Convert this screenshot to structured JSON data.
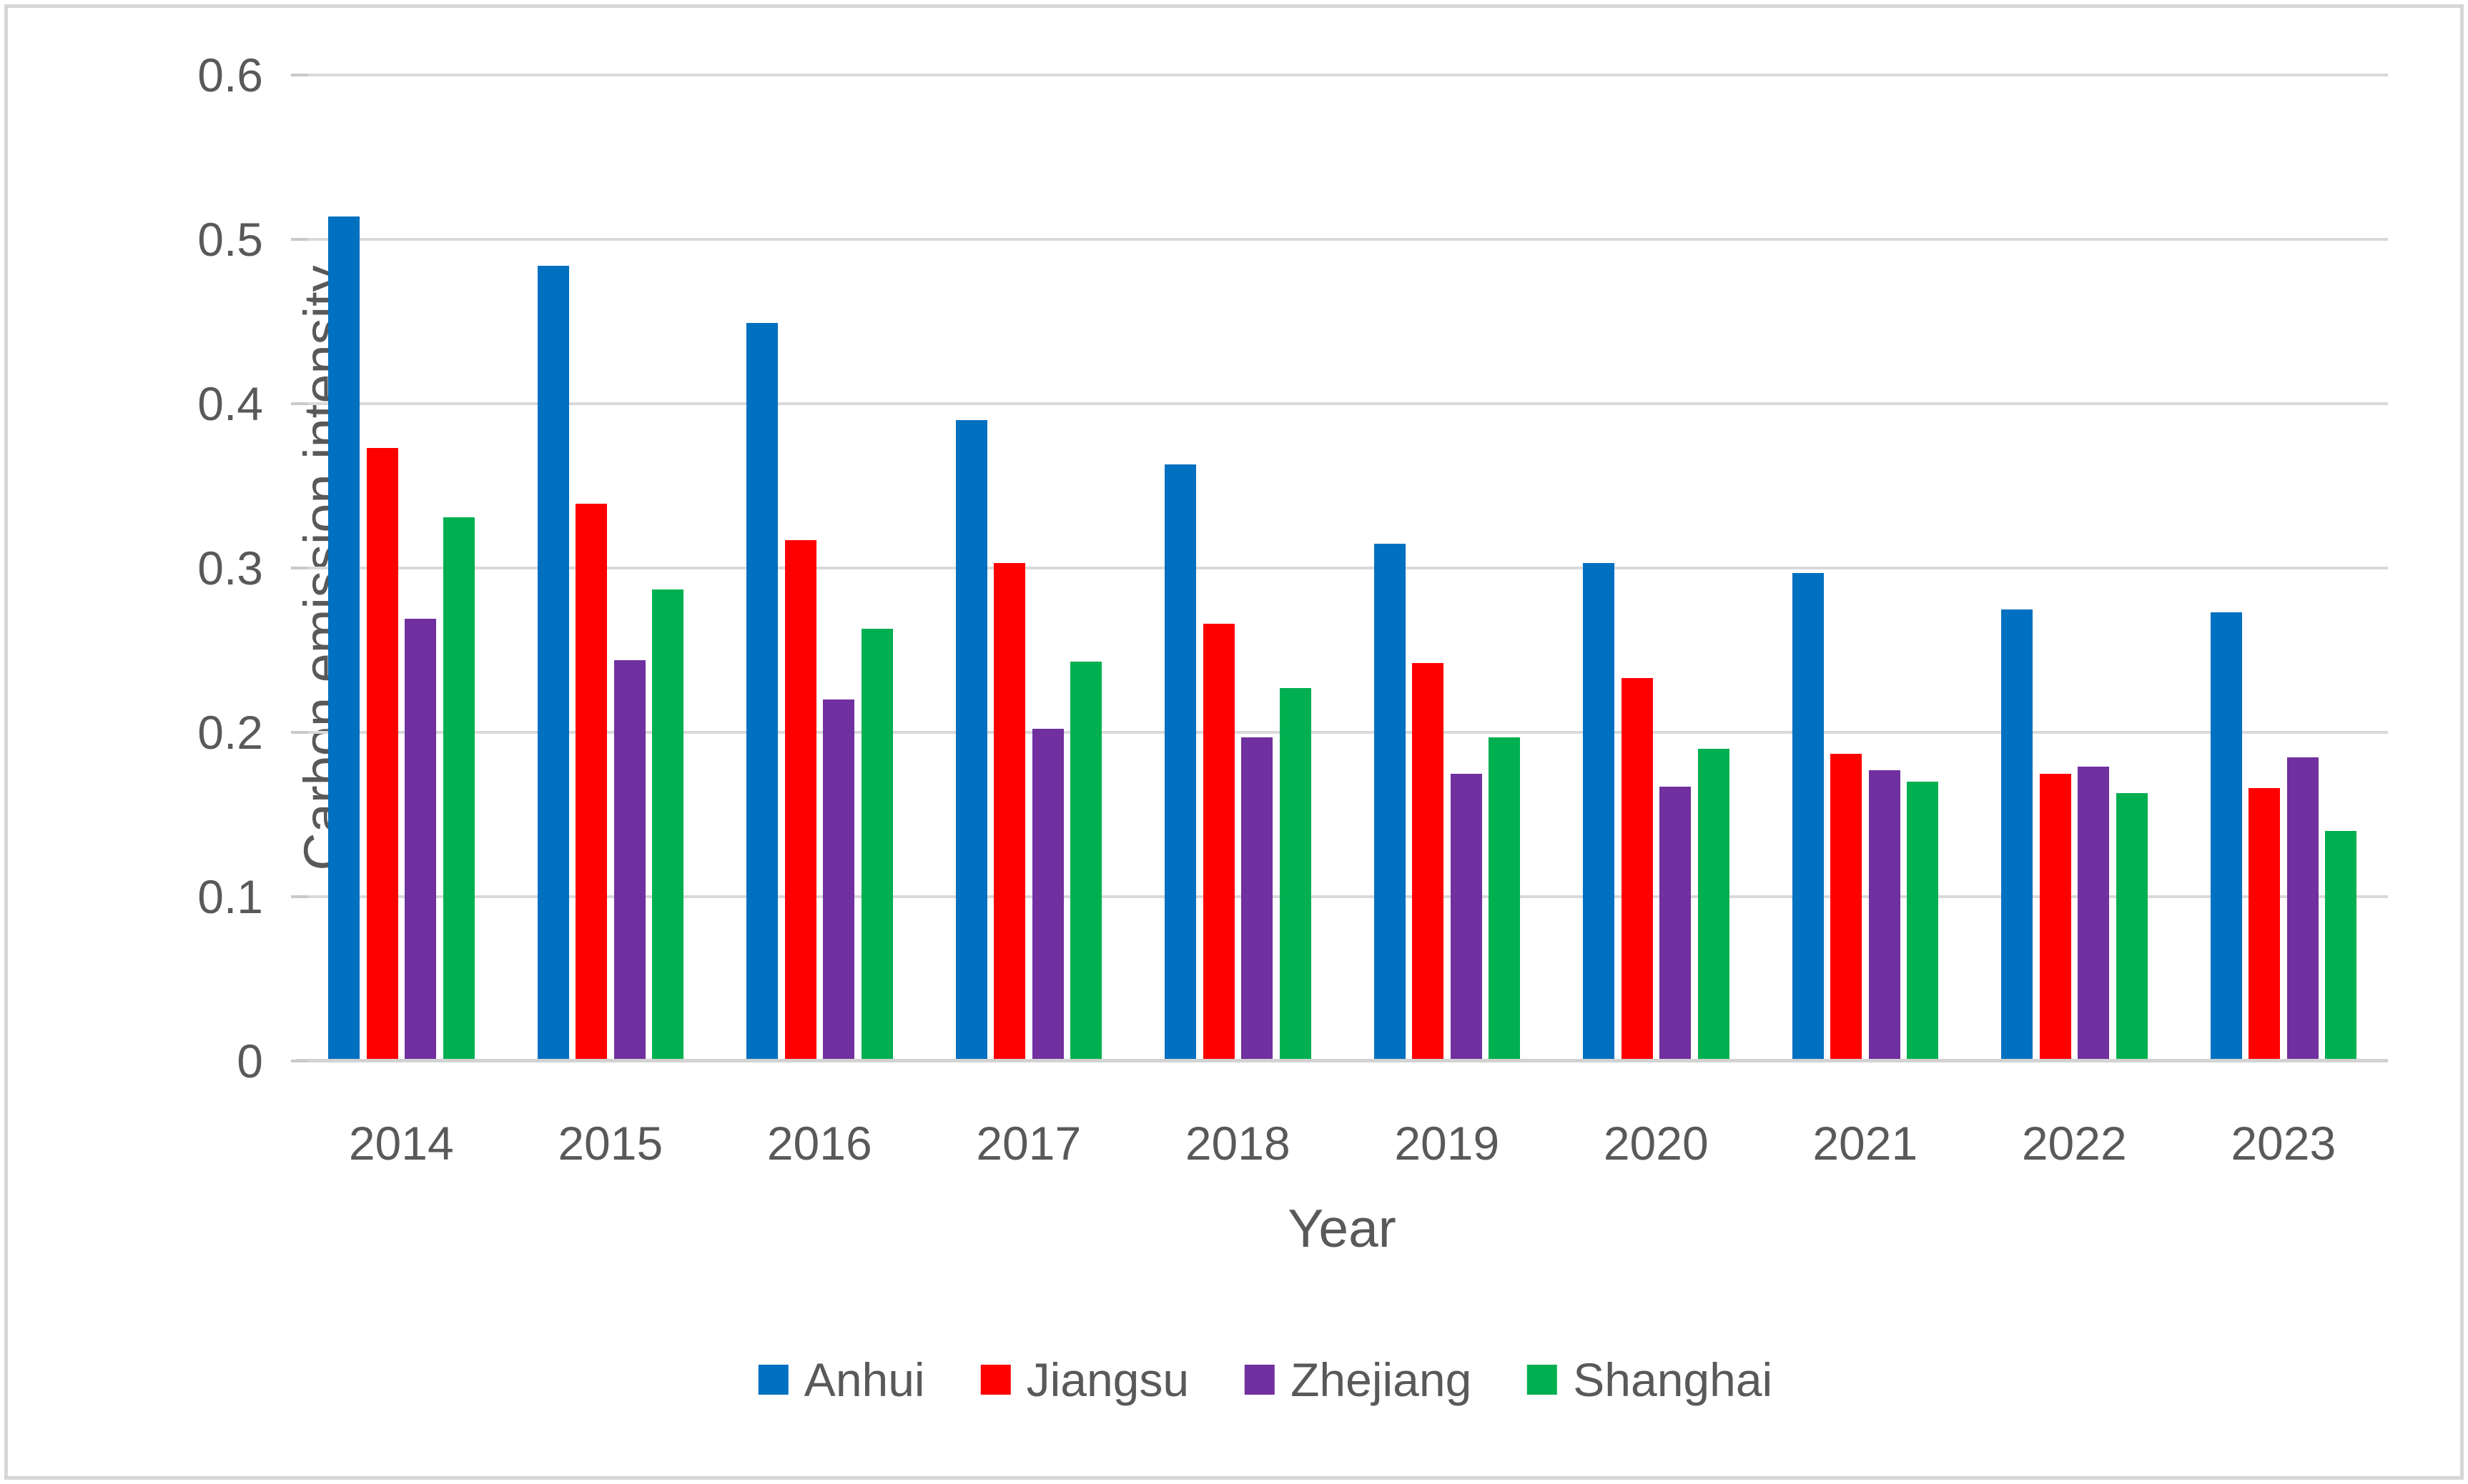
{
  "axes": {
    "y_title": "Carbon emission intensity",
    "x_title": "Year"
  },
  "colors": {
    "grid": "#d9d9d9",
    "axis_text": "#595959",
    "frame_border": "#d6d6d6"
  },
  "chart_data": {
    "type": "bar",
    "title": "",
    "xlabel": "Year",
    "ylabel": "Carbon emission intensity",
    "ylim": [
      0,
      0.6
    ],
    "ytick_step": 0.1,
    "ytick_labels_top_down": [
      "0.6",
      "0.5",
      "0.4",
      "0.3",
      "0.2",
      "0.1",
      "0"
    ],
    "grid": true,
    "legend_position": "bottom",
    "categories": [
      "2014",
      "2015",
      "2016",
      "2017",
      "2018",
      "2019",
      "2020",
      "2021",
      "2022",
      "2023"
    ],
    "series": [
      {
        "name": "Anhui",
        "color": "#0070C0",
        "values": [
          0.514,
          0.484,
          0.449,
          0.39,
          0.363,
          0.315,
          0.303,
          0.297,
          0.275,
          0.273
        ]
      },
      {
        "name": "Jiangsu",
        "color": "#FF0000",
        "values": [
          0.373,
          0.339,
          0.317,
          0.303,
          0.266,
          0.242,
          0.233,
          0.187,
          0.175,
          0.166
        ]
      },
      {
        "name": "Zhejiang",
        "color": "#7030A0",
        "values": [
          0.269,
          0.244,
          0.22,
          0.202,
          0.197,
          0.175,
          0.167,
          0.177,
          0.179,
          0.185
        ]
      },
      {
        "name": "Shanghai",
        "color": "#00B050",
        "values": [
          0.331,
          0.287,
          0.263,
          0.243,
          0.227,
          0.197,
          0.19,
          0.17,
          0.163,
          0.14
        ]
      }
    ]
  }
}
